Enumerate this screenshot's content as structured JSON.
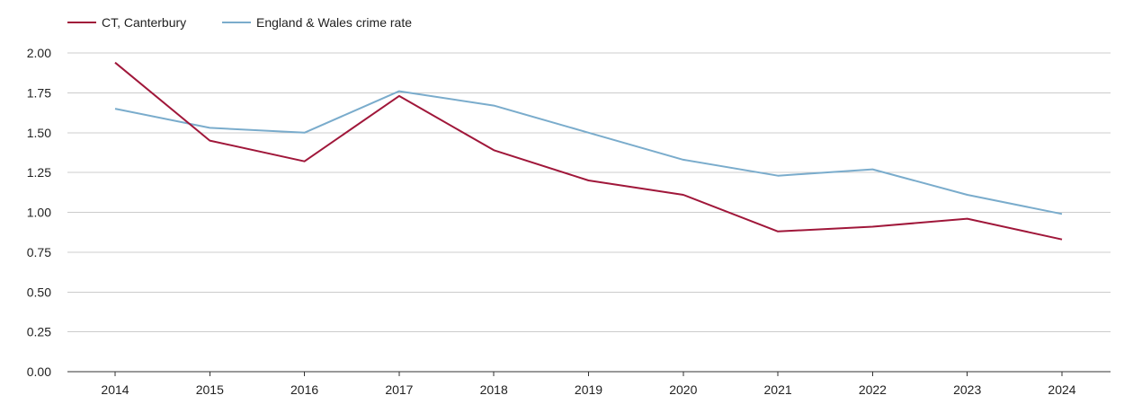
{
  "chart_data": {
    "type": "line",
    "title": "",
    "xlabel": "",
    "ylabel": "",
    "categories": [
      "2014",
      "2015",
      "2016",
      "2017",
      "2018",
      "2019",
      "2020",
      "2021",
      "2022",
      "2023",
      "2024"
    ],
    "ylim": [
      0,
      2.0
    ],
    "yticks": [
      "0.00",
      "0.25",
      "0.50",
      "0.75",
      "1.00",
      "1.25",
      "1.50",
      "1.75",
      "2.00"
    ],
    "grid": true,
    "legend_position": "top-left",
    "series": [
      {
        "name": "CT, Canterbury",
        "color": "#a0173a",
        "values": [
          1.94,
          1.45,
          1.32,
          1.73,
          1.39,
          1.2,
          1.11,
          0.88,
          0.91,
          0.96,
          0.83
        ]
      },
      {
        "name": "England & Wales crime rate",
        "color": "#7aaccc",
        "values": [
          1.65,
          1.53,
          1.5,
          1.76,
          1.67,
          1.5,
          1.33,
          1.23,
          1.27,
          1.11,
          0.99
        ]
      }
    ]
  }
}
